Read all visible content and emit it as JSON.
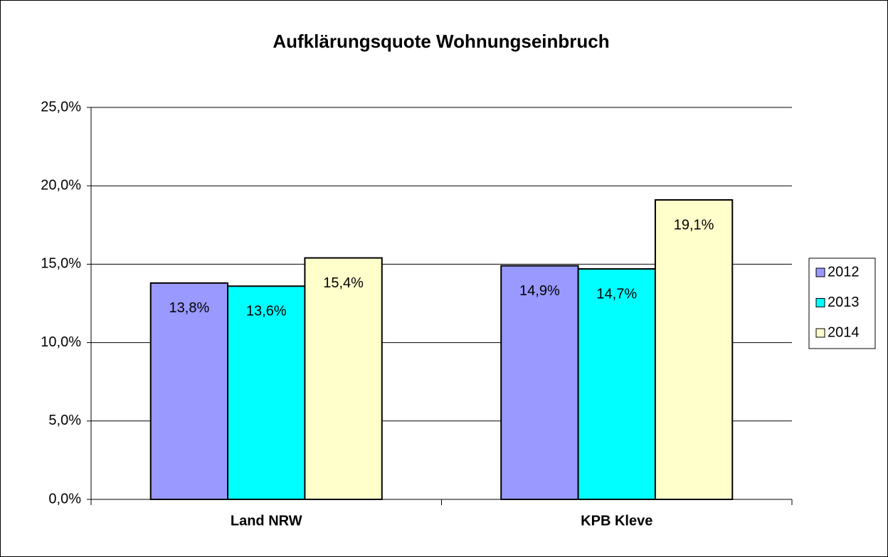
{
  "chart_data": {
    "type": "bar",
    "title": "Aufklärungsquote  Wohnungseinbruch",
    "categories": [
      "Land NRW",
      "KPB Kleve"
    ],
    "series": [
      {
        "name": "2012",
        "color": "#9999ff",
        "values": [
          13.8,
          14.9
        ],
        "value_labels": [
          "13,8%",
          "14,9%"
        ]
      },
      {
        "name": "2013",
        "color": "#00ffff",
        "values": [
          13.6,
          14.7
        ],
        "value_labels": [
          "13,6%",
          "14,7%"
        ]
      },
      {
        "name": "2014",
        "color": "#ffffcc",
        "values": [
          15.4,
          19.1
        ],
        "value_labels": [
          "15,4%",
          "19,1%"
        ]
      }
    ],
    "ylim": [
      0,
      25
    ],
    "yticks": [
      {
        "value": 0,
        "label": "0,0%"
      },
      {
        "value": 5,
        "label": "5,0%"
      },
      {
        "value": 10,
        "label": "10,0%"
      },
      {
        "value": 15,
        "label": "15,0%"
      },
      {
        "value": 20,
        "label": "20,0%"
      },
      {
        "value": 25,
        "label": "25,0%"
      }
    ],
    "grid": true,
    "legend": "right"
  }
}
